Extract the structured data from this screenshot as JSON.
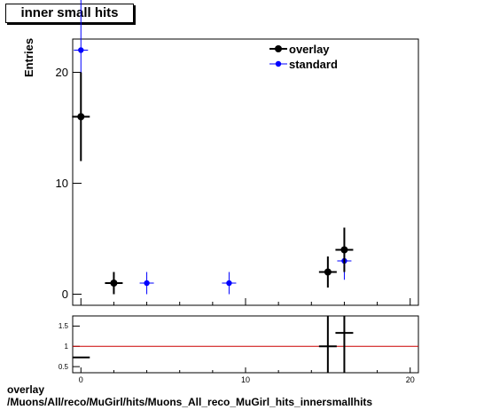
{
  "title": "inner small hits",
  "caption": {
    "line1": "overlay",
    "line2": "/Muons/All/reco/MuGirl/hits/Muons_All_reco_MuGirl_hits_innersmallhits"
  },
  "colors": {
    "overlay": "#000000",
    "standard": "#0000ff",
    "ratio_line": "#cc0000"
  },
  "chart_data": [
    {
      "type": "scatter",
      "ylabel": "Entries",
      "xlim": [
        -0.5,
        20.5
      ],
      "ylim": [
        -1,
        23
      ],
      "yticks": [
        0,
        10,
        20
      ],
      "xticks": [
        0,
        10,
        20
      ],
      "legend": "top-right",
      "series": [
        {
          "name": "overlay",
          "points": [
            {
              "x": 0,
              "y": 16,
              "yerr": 4
            },
            {
              "x": 2,
              "y": 1,
              "yerr": 1
            },
            {
              "x": 15,
              "y": 2,
              "yerr": 1.4
            },
            {
              "x": 16,
              "y": 4,
              "yerr": 2
            }
          ]
        },
        {
          "name": "standard",
          "points": [
            {
              "x": 0,
              "y": 22,
              "yerr": 4.7
            },
            {
              "x": 4,
              "y": 1,
              "yerr": 1
            },
            {
              "x": 9,
              "y": 1,
              "yerr": 1
            },
            {
              "x": 16,
              "y": 3,
              "yerr": 1.7
            }
          ]
        }
      ]
    },
    {
      "type": "scatter",
      "xlim": [
        -0.5,
        20.5
      ],
      "ylim": [
        0.35,
        1.75
      ],
      "yticks": [
        0.5,
        1,
        1.5
      ],
      "xticks": [
        0,
        10,
        20
      ],
      "reference_line": 1,
      "series": [
        {
          "points": [
            {
              "x": 0,
              "y": 0.727,
              "yerr": 0.0
            },
            {
              "x": 15,
              "y": 1.0,
              "yerr": 1.0
            },
            {
              "x": 16,
              "y": 1.333,
              "yerr": 1.0
            }
          ]
        }
      ]
    }
  ]
}
